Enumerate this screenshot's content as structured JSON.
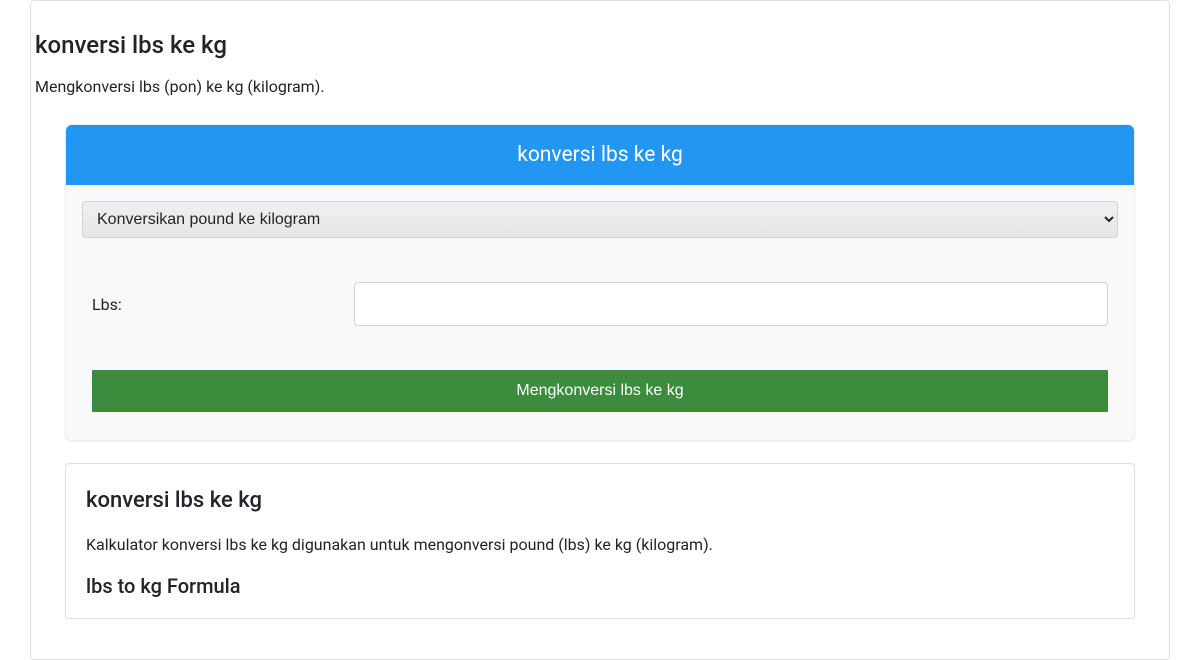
{
  "page": {
    "title": "konversi lbs ke kg",
    "subtitle": "Mengkonversi lbs (pon) ke kg (kilogram)."
  },
  "card": {
    "header": "konversi lbs ke kg",
    "header_bg": "#2196f3",
    "header_color": "#ffffff",
    "body_bg": "#f8f9fa",
    "select": {
      "selected": "Konversikan pound ke kilogram",
      "options": [
        "Konversikan pound ke kilogram"
      ]
    },
    "input": {
      "label": "Lbs:",
      "value": ""
    },
    "button": {
      "label": "Mengkonversi lbs ke kg",
      "bg": "#3d8b3d",
      "color": "#ffffff"
    }
  },
  "info": {
    "title": "konversi lbs ke kg",
    "text": "Kalkulator konversi lbs ke kg digunakan untuk mengonversi pound (lbs) ke kg (kilogram).",
    "subtitle": "lbs to kg Formula"
  },
  "colors": {
    "page_bg": "#ffffff",
    "text": "#212529",
    "border": "#dee2e6",
    "input_border": "#ced4da"
  }
}
